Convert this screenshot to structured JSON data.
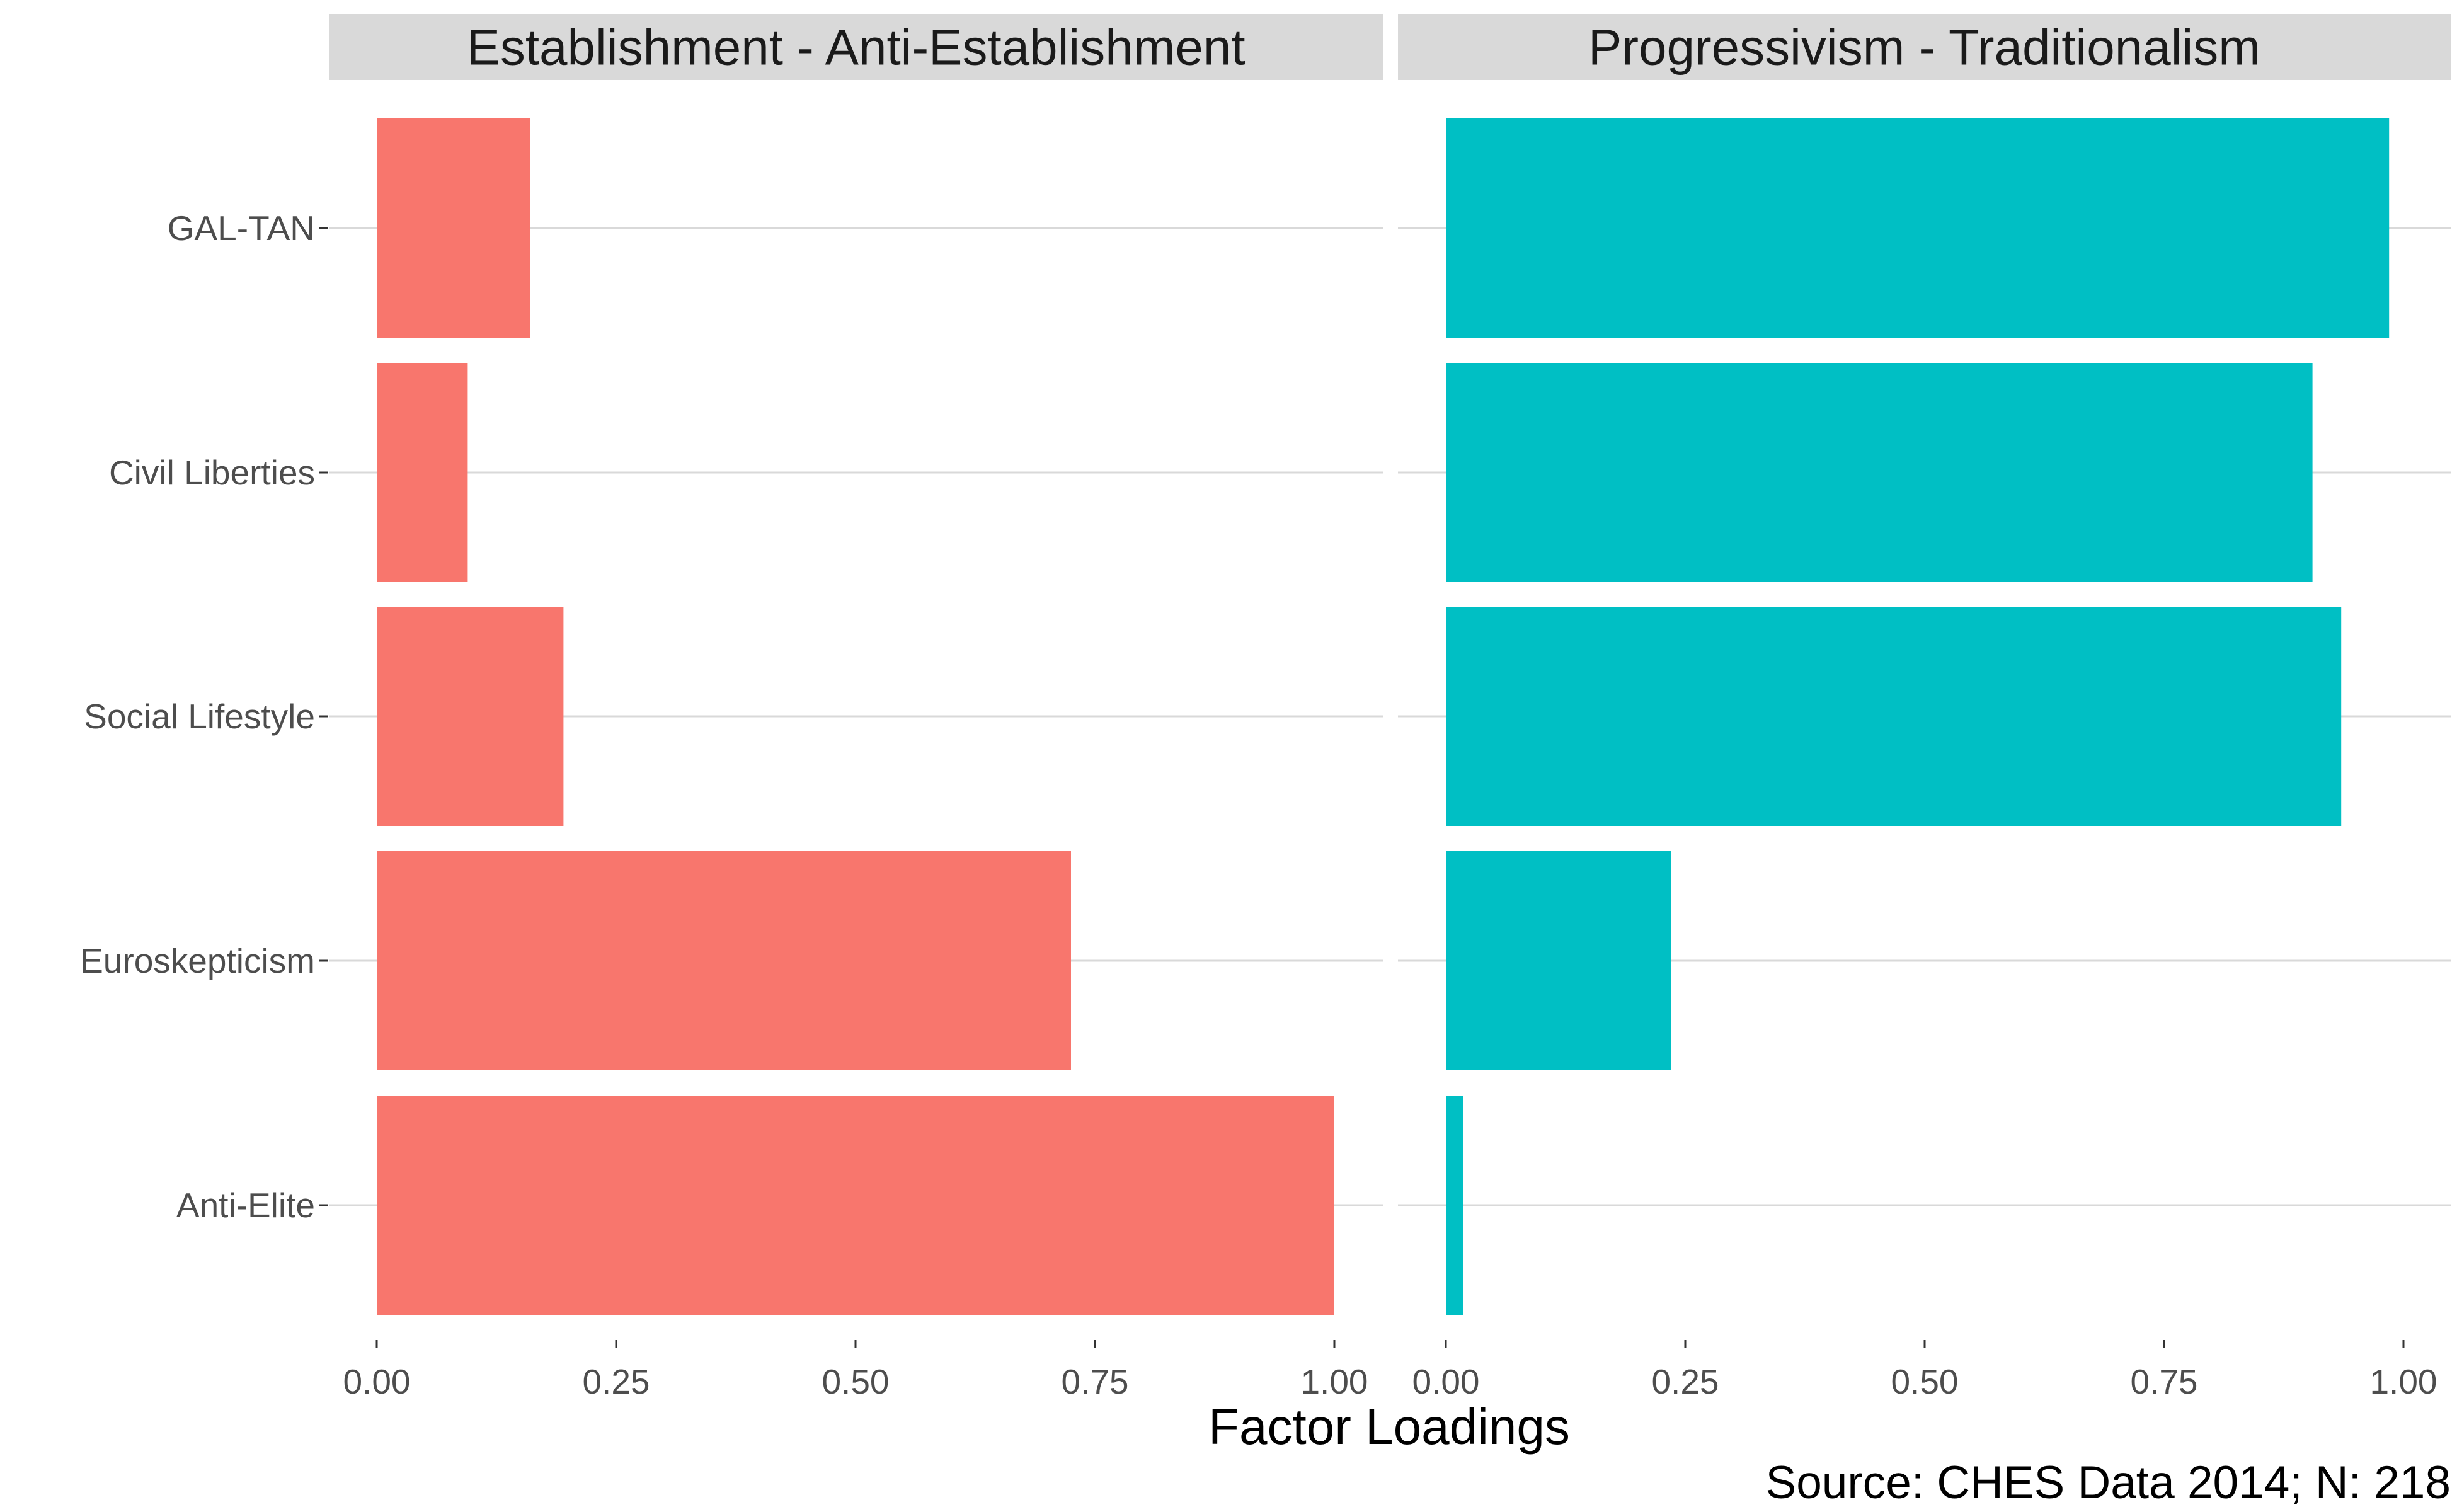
{
  "chart_data": {
    "type": "bar",
    "orientation": "horizontal",
    "categories": [
      "GAL-TAN",
      "Civil Liberties",
      "Social Lifestyle",
      "Euroskepticism",
      "Anti-Elite"
    ],
    "panels": [
      {
        "title": "Establishment - Anti-Establishment",
        "color": "#F8766D",
        "values": [
          0.16,
          0.095,
          0.195,
          0.725,
          1.0
        ]
      },
      {
        "title": "Progressivism - Traditionalism",
        "color": "#00BFC4",
        "values": [
          0.985,
          0.905,
          0.935,
          0.235,
          0.018
        ]
      }
    ],
    "xlim": [
      0,
      1
    ],
    "x_ticks": [
      "0.00",
      "0.25",
      "0.50",
      "0.75",
      "1.00"
    ],
    "xlabel": "Factor Loadings",
    "ylabel": "",
    "grid": true,
    "caption": "Source: CHES Data 2014; N: 218"
  }
}
